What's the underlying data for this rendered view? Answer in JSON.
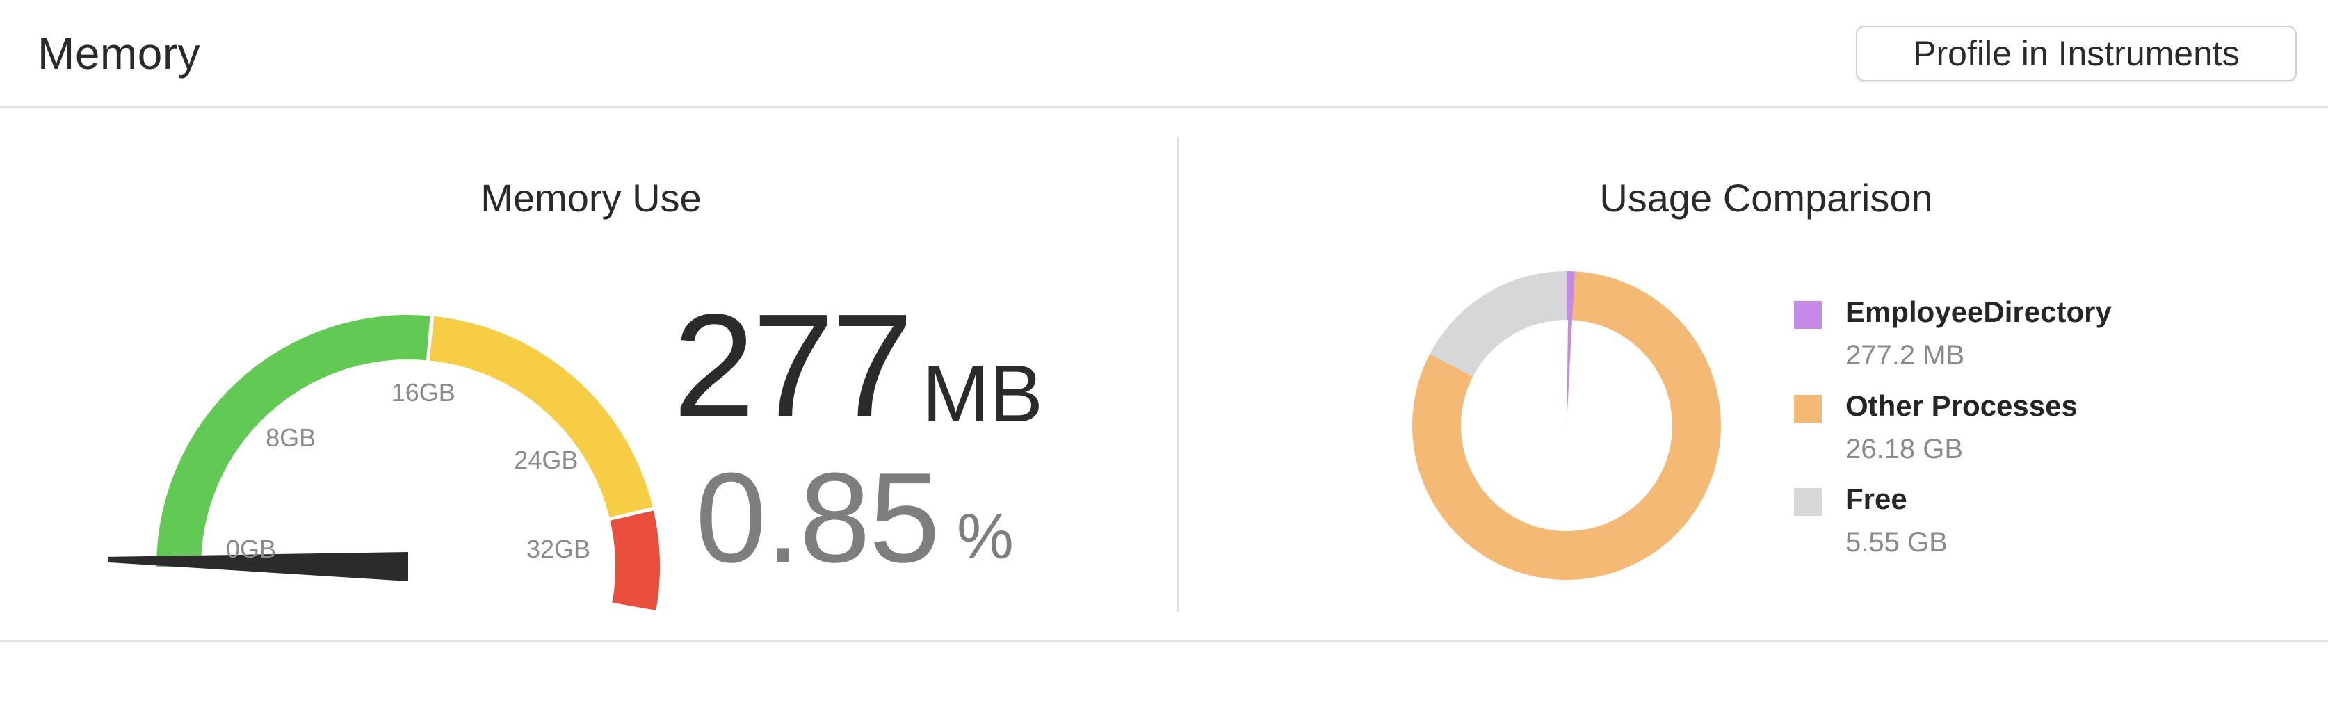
{
  "header": {
    "title": "Memory",
    "profile_button": "Profile in Instruments"
  },
  "memory_use": {
    "title": "Memory Use",
    "value": "277",
    "unit": "MB",
    "percent": "0.85",
    "percent_unit": "%",
    "gauge": {
      "max_gb": 32,
      "needle_value_gb": 0.27,
      "ticks": [
        "0GB",
        "8GB",
        "16GB",
        "24GB",
        "32GB"
      ],
      "zones": [
        {
          "from_gb": 0,
          "to_gb": 16,
          "color": "#62c954"
        },
        {
          "from_gb": 16,
          "to_gb": 28,
          "color": "#f7cd45"
        },
        {
          "from_gb": 28,
          "to_gb": 32,
          "color": "#ea4f3d"
        }
      ],
      "needle_color": "#2b2b2b"
    }
  },
  "usage_comparison": {
    "title": "Usage Comparison",
    "items": [
      {
        "name": "EmployeeDirectory",
        "value": "277.2 MB",
        "amount_gb": 0.277,
        "color": "#c58ae8"
      },
      {
        "name": "Other Processes",
        "value": "26.18 GB",
        "amount_gb": 26.18,
        "color": "#f4b975"
      },
      {
        "name": "Free",
        "value": "5.55 GB",
        "amount_gb": 5.55,
        "color": "#d7d7d9"
      }
    ]
  }
}
